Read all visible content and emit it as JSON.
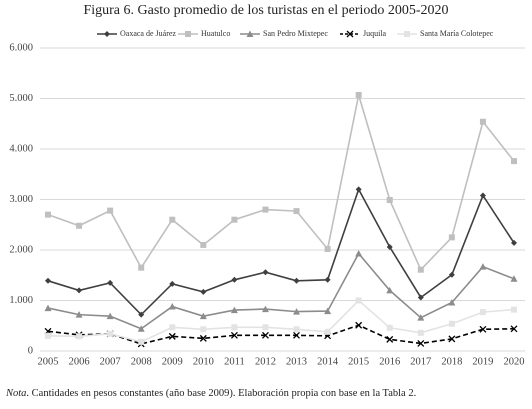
{
  "chart_data": {
    "type": "line",
    "title": "Figura 6. Gasto promedio de los turistas en el periodo 2005-2020",
    "categories": [
      "2005",
      "2006",
      "2007",
      "2008",
      "2009",
      "2010",
      "2011",
      "2012",
      "2013",
      "2014",
      "2015",
      "2016",
      "2017",
      "2018",
      "2019",
      "2020"
    ],
    "series": [
      {
        "name": "Oaxaca de Juárez",
        "color": "#3f3f3f",
        "marker": "diamond",
        "dashed": false,
        "values": [
          1390,
          1200,
          1350,
          720,
          1330,
          1170,
          1410,
          1560,
          1390,
          1410,
          3200,
          2060,
          1060,
          1510,
          3080,
          2140
        ]
      },
      {
        "name": "Huatulco",
        "color": "#bfbfbf",
        "marker": "square",
        "dashed": false,
        "values": [
          2700,
          2480,
          2780,
          1650,
          2600,
          2100,
          2600,
          2800,
          2770,
          2020,
          5070,
          2990,
          1610,
          2250,
          4540,
          3760
        ]
      },
      {
        "name": "San Pedro Mixtepec",
        "color": "#8c8c8c",
        "marker": "triangle",
        "dashed": false,
        "values": [
          850,
          720,
          690,
          440,
          880,
          690,
          810,
          830,
          780,
          790,
          1930,
          1200,
          660,
          960,
          1670,
          1430
        ]
      },
      {
        "name": "Juquila",
        "color": "#000000",
        "marker": "x",
        "dashed": true,
        "values": [
          390,
          320,
          340,
          140,
          290,
          250,
          310,
          310,
          310,
          300,
          510,
          230,
          150,
          240,
          430,
          440
        ]
      },
      {
        "name": "Santa  María Colotepec",
        "color": "#e3e3e3",
        "marker": "square",
        "dashed": false,
        "values": [
          300,
          290,
          340,
          180,
          470,
          430,
          470,
          470,
          430,
          380,
          1000,
          460,
          360,
          540,
          770,
          820
        ]
      }
    ],
    "ylim": [
      0,
      6000
    ],
    "yticks": [
      0,
      {
        "value": 1000,
        "label": "1.000"
      },
      {
        "value": 2000,
        "label": "2.000"
      },
      {
        "value": 3000,
        "label": "3.000"
      },
      {
        "value": 4000,
        "label": "4.000"
      },
      {
        "value": 5000,
        "label": "5.000"
      },
      {
        "value": 6000,
        "label": "6.000"
      }
    ],
    "grid": true,
    "legend": "top"
  },
  "note": {
    "label": "Nota",
    "text": ". Cantidades en pesos constantes (año base 2009). Elaboración propia con base en la Tabla 2."
  }
}
